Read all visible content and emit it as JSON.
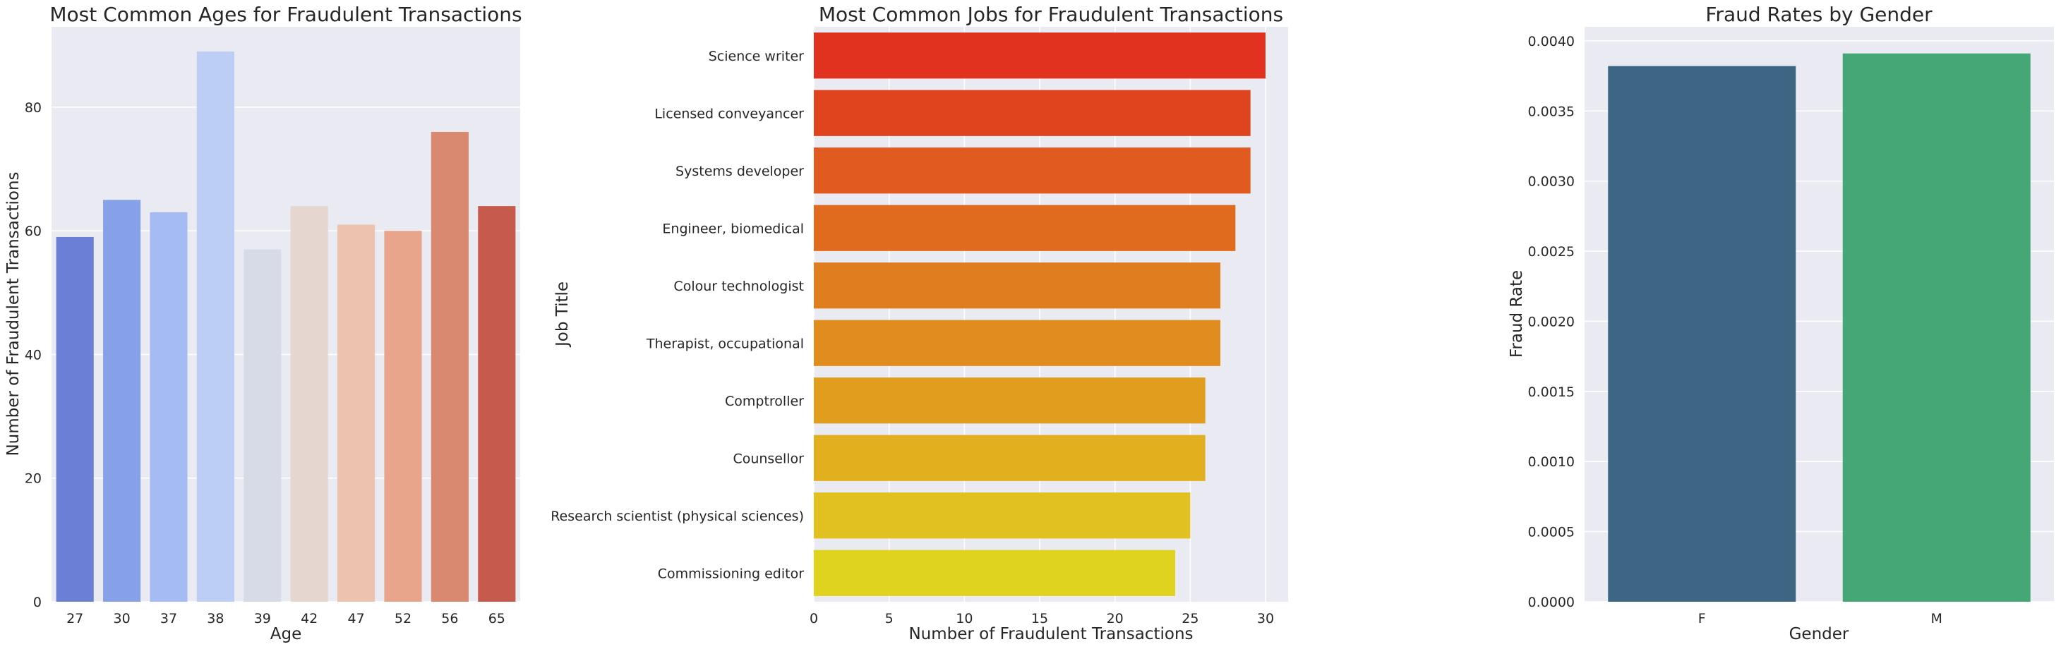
{
  "chart_data": [
    {
      "type": "bar",
      "title": "Most Common Ages for Fraudulent Transactions",
      "xlabel": "Age",
      "ylabel": "Number of Fraudulent Transactions",
      "categories": [
        "27",
        "30",
        "37",
        "38",
        "39",
        "42",
        "47",
        "52",
        "56",
        "65"
      ],
      "values": [
        59,
        65,
        63,
        89,
        57,
        64,
        61,
        60,
        76,
        64
      ],
      "colors": [
        "#6b7fd6",
        "#86a1e8",
        "#a4bcf3",
        "#bccef4",
        "#d7dbe8",
        "#e5d7cf",
        "#edc2ae",
        "#e8a58b",
        "#d9896f",
        "#c55a4d"
      ],
      "ylim": [
        0,
        93
      ],
      "yticks": [
        0,
        20,
        40,
        60,
        80
      ],
      "orientation": "vertical",
      "grid": true
    },
    {
      "type": "bar",
      "title": "Most Common Jobs for Fraudulent Transactions",
      "xlabel": "Number of Fraudulent Transactions",
      "ylabel": "Job Title",
      "categories": [
        "Science writer",
        "Licensed conveyancer",
        "Systems developer",
        "Engineer, biomedical",
        "Colour technologist",
        "Therapist, occupational",
        "Comptroller",
        "Counsellor",
        "Research scientist (physical sciences)",
        "Commissioning editor"
      ],
      "values": [
        30,
        29,
        29,
        28,
        27,
        27,
        26,
        26,
        25,
        24
      ],
      "colors": [
        "#e0321e",
        "#e0441f",
        "#e15a1f",
        "#e06b1f",
        "#e07d1e",
        "#e08c1e",
        "#e19e1e",
        "#e2b01e",
        "#e1c11f",
        "#e0d31f"
      ],
      "xlim": [
        0,
        31.5
      ],
      "xticks": [
        0,
        5,
        10,
        15,
        20,
        25,
        30
      ],
      "orientation": "horizontal",
      "grid": true
    },
    {
      "type": "bar",
      "title": "Fraud Rates by Gender",
      "xlabel": "Gender",
      "ylabel": "Fraud Rate",
      "categories": [
        "F",
        "M"
      ],
      "values": [
        0.00382,
        0.00391
      ],
      "colors": [
        "#3d6684",
        "#45a775"
      ],
      "ylim": [
        0,
        0.0041
      ],
      "yticks": [
        "0.0000",
        "0.0005",
        "0.0010",
        "0.0015",
        "0.0020",
        "0.0025",
        "0.0030",
        "0.0035",
        "0.0040"
      ],
      "orientation": "vertical",
      "grid": true
    }
  ]
}
